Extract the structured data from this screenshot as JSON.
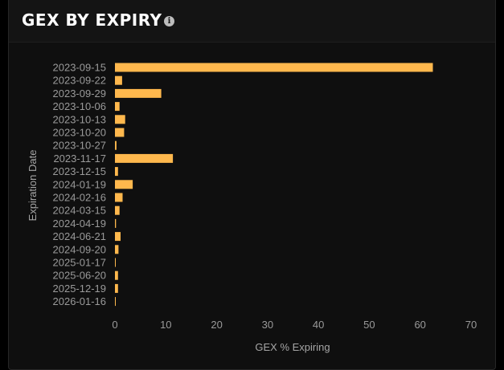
{
  "panel": {
    "title": "GEX BY EXPIRY",
    "info_icon": "info-circle-icon"
  },
  "colors": {
    "bar": "#ffb84d",
    "panel_bg": "#0f0f0f",
    "header_bg": "#141414",
    "tick_text": "#9a9a9a",
    "axis_title": "#a6a6a6"
  },
  "chart_data": {
    "type": "bar",
    "orientation": "horizontal",
    "categories": [
      "2023-09-15",
      "2023-09-22",
      "2023-09-29",
      "2023-10-06",
      "2023-10-13",
      "2023-10-20",
      "2023-10-27",
      "2023-11-17",
      "2023-12-15",
      "2024-01-19",
      "2024-02-16",
      "2024-03-15",
      "2024-04-19",
      "2024-06-21",
      "2024-09-20",
      "2025-01-17",
      "2025-06-20",
      "2025-12-19",
      "2026-01-16"
    ],
    "values": [
      62.5,
      1.4,
      9.1,
      0.9,
      2.0,
      1.8,
      0.3,
      11.4,
      0.6,
      3.5,
      1.5,
      0.9,
      0.2,
      1.1,
      0.7,
      0.1,
      0.6,
      0.6,
      0.05
    ],
    "xlabel": "GEX % Expiring",
    "ylabel": "Expiration Date",
    "xlim": [
      0,
      70
    ],
    "xticks": [
      0,
      10,
      20,
      30,
      40,
      50,
      60,
      70
    ],
    "grid": false,
    "legend": "none"
  }
}
